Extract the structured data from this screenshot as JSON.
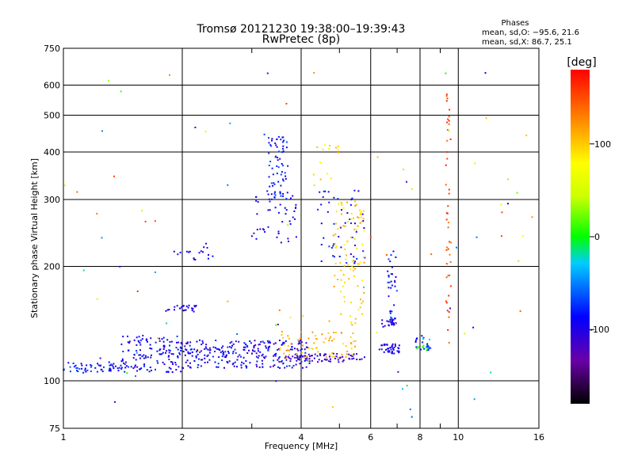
{
  "chart_data": {
    "type": "scatter",
    "title": "Tromsø 20121230 19:38:00–19:39:43",
    "subtitle": "RwPretec (8p)",
    "xlabel": "Frequency [MHz]",
    "ylabel": "Stationary phase Virtual Height [km]",
    "x_scale": "log",
    "y_scale": "log",
    "xlim": [
      1,
      16
    ],
    "ylim": [
      75,
      750
    ],
    "x_ticks": [
      1,
      2,
      4,
      6,
      8,
      10,
      16
    ],
    "x_minor_ticks": [
      3,
      5,
      7,
      9
    ],
    "y_ticks": [
      75,
      100,
      200,
      300,
      400,
      500,
      600,
      750
    ],
    "grid": true,
    "info": {
      "heading": "Phases",
      "line1": "mean, sd,O: −95.6, 21.6",
      "line2": "mean, sd,X:  86.7, 25.1"
    },
    "colorbar": {
      "label": "[deg]",
      "range": [
        -180,
        180
      ],
      "ticks": [
        100,
        0,
        -100
      ]
    },
    "series": [
      {
        "x_range": [
          1.0,
          1.4
        ],
        "y_range": [
          105,
          112
        ],
        "phase": [
          -110,
          -60
        ],
        "n": 55
      },
      {
        "x_range": [
          1.4,
          2.0
        ],
        "y_range": [
          105,
          132
        ],
        "phase": [
          -115,
          -70
        ],
        "n": 140
      },
      {
        "x_range": [
          2.0,
          3.0
        ],
        "y_range": [
          108,
          128
        ],
        "phase": [
          -115,
          -70
        ],
        "n": 140
      },
      {
        "x_range": [
          3.0,
          4.2
        ],
        "y_range": [
          108,
          128
        ],
        "phase": [
          -125,
          -70
        ],
        "n": 130
      },
      {
        "x_range": [
          4.0,
          5.8
        ],
        "y_range": [
          112,
          118
        ],
        "phase": [
          -130,
          -90
        ],
        "n": 60
      },
      {
        "x_range": [
          3.5,
          5.5
        ],
        "y_range": [
          115,
          135
        ],
        "phase": [
          90,
          130
        ],
        "n": 70
      },
      {
        "x_range": [
          1.8,
          2.2
        ],
        "y_range": [
          152,
          158
        ],
        "phase": [
          -110,
          -90
        ],
        "n": 25
      },
      {
        "x_range": [
          1.9,
          2.4
        ],
        "y_range": [
          208,
          230
        ],
        "phase": [
          -110,
          -80
        ],
        "n": 18
      },
      {
        "x_range": [
          3.0,
          4.0
        ],
        "y_range": [
          230,
          320
        ],
        "phase": [
          -110,
          -80
        ],
        "n": 45
      },
      {
        "x_range": [
          3.3,
          3.7
        ],
        "y_range": [
          300,
          440
        ],
        "phase": [
          -110,
          -60
        ],
        "n": 70
      },
      {
        "x_range": [
          4.4,
          5.8
        ],
        "y_range": [
          200,
          320
        ],
        "phase": [
          -110,
          -70
        ],
        "n": 50
      },
      {
        "x_range": [
          4.8,
          5.8
        ],
        "y_range": [
          140,
          300
        ],
        "phase": [
          80,
          120
        ],
        "n": 95
      },
      {
        "x_range": [
          4.3,
          5.0
        ],
        "y_range": [
          330,
          420
        ],
        "phase": [
          70,
          110
        ],
        "n": 14
      },
      {
        "x_range": [
          6.3,
          7.1
        ],
        "y_range": [
          118,
          125
        ],
        "phase": [
          -110,
          -80
        ],
        "n": 40
      },
      {
        "x_range": [
          6.6,
          7.0
        ],
        "y_range": [
          140,
          220
        ],
        "phase": [
          -110,
          -60
        ],
        "n": 35
      },
      {
        "x_range": [
          6.4,
          7.0
        ],
        "y_range": [
          138,
          145
        ],
        "phase": [
          -110,
          -90
        ],
        "n": 20
      },
      {
        "x_range": [
          7.8,
          8.5
        ],
        "y_range": [
          120,
          130
        ],
        "phase": [
          -100,
          20
        ],
        "n": 30
      },
      {
        "x_range": [
          9.3,
          9.6
        ],
        "y_range": [
          125,
          600
        ],
        "phase": [
          130,
          170
        ],
        "n": 45
      },
      {
        "x_range": [
          1.0,
          16.0
        ],
        "y_range": [
          80,
          650
        ],
        "phase": [
          -140,
          160
        ],
        "n": 90
      }
    ]
  }
}
